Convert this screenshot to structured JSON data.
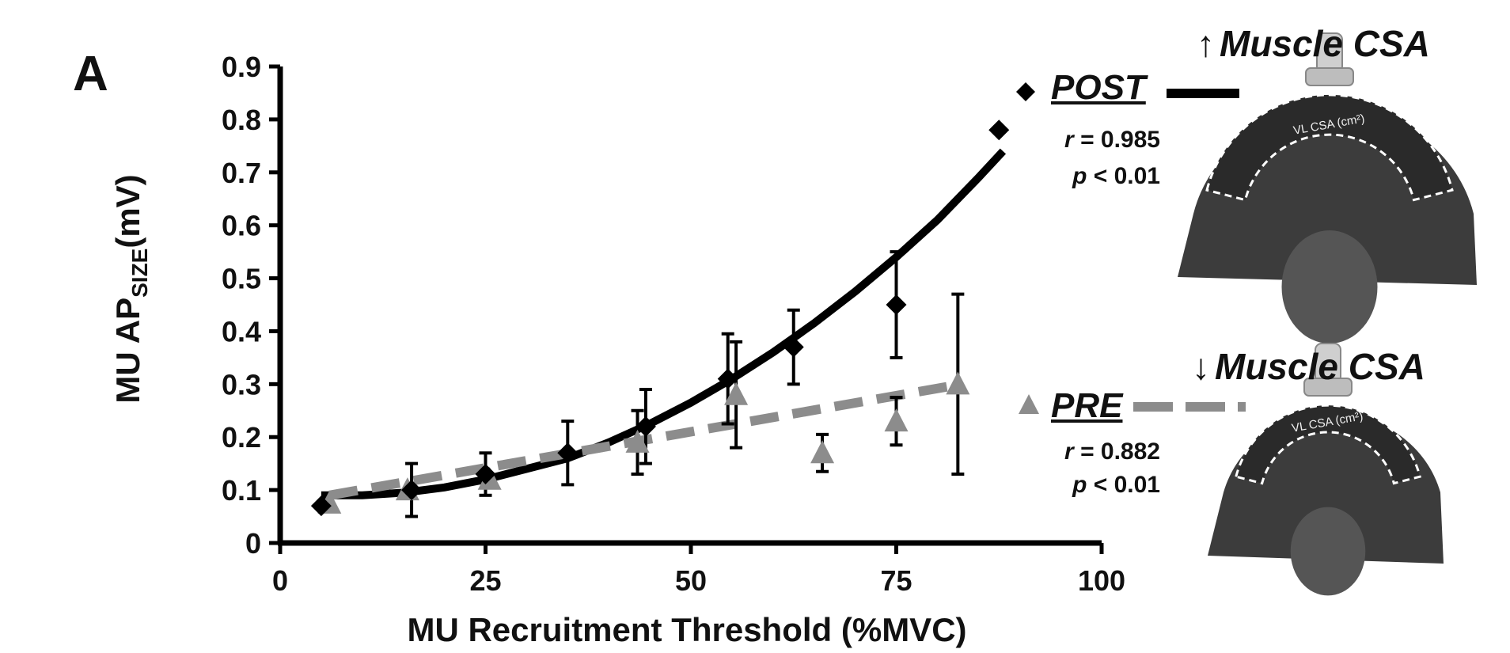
{
  "panel_label": "A",
  "chart_data": {
    "type": "scatter",
    "xlabel": "MU Recruitment  Threshold (%MVC)",
    "ylabel": "MU AP",
    "ylabel_subscript": "SIZE",
    "ylabel_unit": "(mV)",
    "xlim": [
      0,
      100
    ],
    "ylim": [
      0,
      0.9
    ],
    "x_ticks": [
      "0",
      "25",
      "50",
      "75",
      "100"
    ],
    "y_ticks": [
      "0",
      "0.1",
      "0.2",
      "0.3",
      "0.4",
      "0.5",
      "0.6",
      "0.7",
      "0.8",
      "0.9"
    ],
    "grid": false,
    "legend_placement": "right",
    "series": [
      {
        "name": "POST",
        "marker": "diamond",
        "color": "#000000",
        "fit": "solid",
        "r_text": "= 0.985",
        "p_text": "< 0.01",
        "points": [
          {
            "x": 5,
            "y": 0.07,
            "err": 0
          },
          {
            "x": 16,
            "y": 0.1,
            "err": 0.05
          },
          {
            "x": 25,
            "y": 0.13,
            "err": 0.04
          },
          {
            "x": 35,
            "y": 0.17,
            "err": 0.06
          },
          {
            "x": 44.5,
            "y": 0.22,
            "err": 0.07
          },
          {
            "x": 54.5,
            "y": 0.31,
            "err": 0.085
          },
          {
            "x": 62.5,
            "y": 0.37,
            "err": 0.07
          },
          {
            "x": 75,
            "y": 0.45,
            "err": 0.1
          },
          {
            "x": 87.5,
            "y": 0.78,
            "err": 0
          }
        ],
        "fit_curve": {
          "x": [
            5,
            10,
            15,
            20,
            25,
            30,
            35,
            40,
            45,
            50,
            55,
            60,
            65,
            70,
            75,
            80,
            85,
            88
          ],
          "y": [
            0.09,
            0.09,
            0.095,
            0.105,
            0.12,
            0.14,
            0.16,
            0.19,
            0.225,
            0.265,
            0.31,
            0.36,
            0.415,
            0.475,
            0.54,
            0.61,
            0.69,
            0.74
          ]
        }
      },
      {
        "name": "PRE",
        "marker": "triangle",
        "color": "#8c8c8c",
        "fit": "dashed",
        "r_text": "= 0.882",
        "p_text": "< 0.01",
        "points": [
          {
            "x": 6,
            "y": 0.075,
            "err": 0
          },
          {
            "x": 15.5,
            "y": 0.1,
            "err": 0
          },
          {
            "x": 25.5,
            "y": 0.12,
            "err": 0
          },
          {
            "x": 43.5,
            "y": 0.19,
            "err": 0.06
          },
          {
            "x": 55.5,
            "y": 0.28,
            "err": 0.1
          },
          {
            "x": 66,
            "y": 0.17,
            "err": 0.035
          },
          {
            "x": 75,
            "y": 0.23,
            "err": 0.045
          },
          {
            "x": 82.5,
            "y": 0.3,
            "err": 0.17
          }
        ],
        "fit_curve": {
          "x": [
            6,
            83
          ],
          "y": [
            0.09,
            0.3
          ]
        }
      }
    ]
  },
  "images": [
    {
      "direction": "up",
      "arrow": "↑",
      "title": "Muscle CSA",
      "scan_label": "VL CSA (cm²)"
    },
    {
      "direction": "down",
      "arrow": "↓",
      "title": "Muscle CSA",
      "scan_label": "VL CSA (cm²)"
    }
  ]
}
